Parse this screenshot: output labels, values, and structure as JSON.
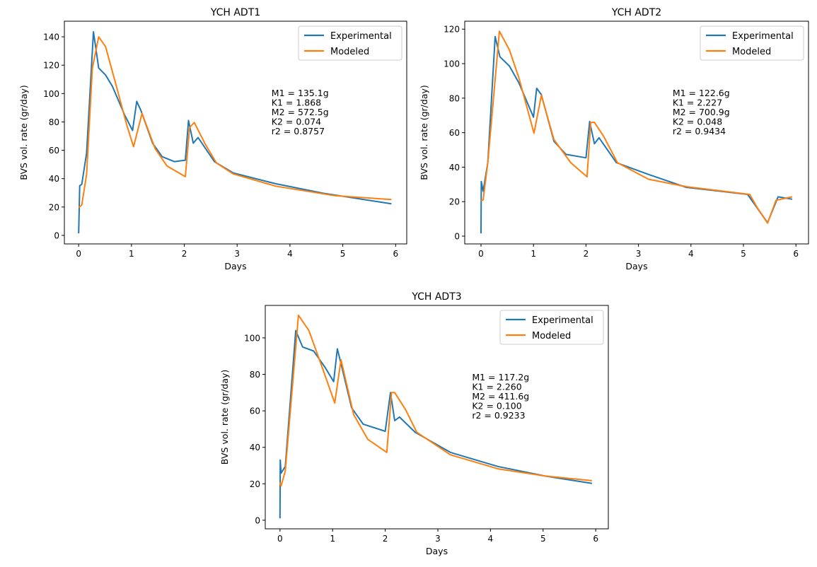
{
  "chart_data": [
    {
      "type": "line",
      "title": "YCH ADT1",
      "xlabel": "Days",
      "ylabel": "BVS vol. rate (gr/day)",
      "xlim": [
        -0.27,
        6.21
      ],
      "ylim": [
        -6,
        151
      ],
      "xticks": [
        0,
        1,
        2,
        3,
        4,
        5,
        6
      ],
      "yticks": [
        0,
        20,
        40,
        60,
        80,
        100,
        120,
        140
      ],
      "grid": false,
      "legend_position": "top-right",
      "annotation": [
        "M1 = 135.1g",
        "K1 = 1.868",
        "M2 = 572.5g",
        "K2 = 0.074",
        "r2 = 0.8757"
      ],
      "series": [
        {
          "name": "Experimental",
          "color": "#1f77b4",
          "x": [
            0,
            0.02,
            0.06,
            0.15,
            0.28,
            0.38,
            0.51,
            0.64,
            0.87,
            1.02,
            1.1,
            1.18,
            1.4,
            1.58,
            1.81,
            2.02,
            2.08,
            2.17,
            2.26,
            2.57,
            2.93,
            3.73,
            4.63,
            5.92
          ],
          "y": [
            1.5,
            35,
            36,
            58,
            143.5,
            118,
            113,
            105,
            85,
            74,
            94.5,
            88,
            65,
            55.5,
            52,
            53,
            81,
            65,
            69,
            52,
            44,
            36.4,
            29.7,
            22.3
          ]
        },
        {
          "name": "Modeled",
          "color": "#ff7f0e",
          "x": [
            0,
            0.06,
            0.15,
            0.26,
            0.38,
            0.51,
            0.73,
            0.91,
            1.04,
            1.2,
            1.45,
            1.67,
            2.02,
            2.1,
            2.19,
            2.39,
            2.61,
            2.93,
            3.73,
            4.85,
            5.92
          ],
          "y": [
            19.6,
            21.4,
            43,
            118,
            140,
            133,
            103,
            78,
            62.5,
            86,
            61,
            49,
            41.4,
            76,
            79.6,
            64.7,
            51,
            43.3,
            34.7,
            28,
            25.3
          ]
        }
      ]
    },
    {
      "type": "line",
      "title": "YCH ADT2",
      "xlabel": "Days",
      "ylabel": "BVS vol. rate (gr/day)",
      "xlim": [
        -0.31,
        6.24
      ],
      "ylim": [
        -4.5,
        124.6
      ],
      "xticks": [
        0,
        1,
        2,
        3,
        4,
        5,
        6
      ],
      "yticks": [
        0,
        20,
        40,
        60,
        80,
        100,
        120
      ],
      "grid": false,
      "legend_position": "top-right",
      "annotation": [
        "M1 = 122.6g",
        "K1 = 2.227",
        "M2 = 700.9g",
        "K2 = 0.048",
        "r2 = 0.9434"
      ],
      "series": [
        {
          "name": "Experimental",
          "color": "#1f77b4",
          "x": [
            0,
            0.005,
            0.04,
            0.13,
            0.27,
            0.36,
            0.54,
            0.72,
            1.0,
            1.06,
            1.15,
            1.39,
            1.62,
            2.0,
            2.07,
            2.16,
            2.25,
            2.58,
            3.19,
            3.91,
            5.08,
            5.46,
            5.66,
            5.93
          ],
          "y": [
            1.6,
            31.7,
            26,
            42.6,
            115.7,
            104,
            98.6,
            89,
            69,
            85.7,
            82,
            55,
            47.4,
            45.4,
            66.5,
            53.6,
            57,
            42.6,
            35.8,
            28.3,
            24.2,
            7.8,
            22.8,
            21.4
          ]
        },
        {
          "name": "Modeled",
          "color": "#ff7f0e",
          "x": [
            0,
            0.04,
            0.13,
            0.35,
            0.54,
            0.72,
            1.01,
            1.15,
            1.39,
            1.71,
            2.02,
            2.09,
            2.16,
            2.34,
            2.6,
            3.19,
            3.91,
            5.12,
            5.26,
            5.46,
            5.62,
            5.93
          ],
          "y": [
            20.5,
            21,
            42.6,
            118.8,
            108,
            92,
            59.7,
            81.6,
            56,
            42.6,
            34.4,
            65.9,
            66,
            57.7,
            42.6,
            33,
            28.7,
            24.2,
            16.7,
            7.5,
            20.8,
            22.8
          ]
        }
      ]
    },
    {
      "type": "line",
      "title": "YCH ADT3",
      "xlabel": "Days",
      "ylabel": "BVS vol. rate (gr/day)",
      "xlim": [
        -0.28,
        6.24
      ],
      "ylim": [
        -4.7,
        117.8
      ],
      "xticks": [
        0,
        1,
        2,
        3,
        4,
        5,
        6
      ],
      "yticks": [
        0,
        20,
        40,
        60,
        80,
        100
      ],
      "grid": false,
      "legend_position": "top-right",
      "annotation": [
        "M1 = 117.2g",
        "K1 = 2.260",
        "M2 = 411.6g",
        "K2 = 0.100",
        "r2 = 0.9233"
      ],
      "series": [
        {
          "name": "Experimental",
          "color": "#1f77b4",
          "x": [
            0,
            0.005,
            0.02,
            0.1,
            0.3,
            0.43,
            0.64,
            0.86,
            1.02,
            1.09,
            1.15,
            1.36,
            1.58,
            2.0,
            2.1,
            2.18,
            2.27,
            2.57,
            3.24,
            4.14,
            5.03,
            5.93
          ],
          "y": [
            1,
            33,
            25.8,
            29.5,
            104,
            95,
            92.8,
            83.7,
            76,
            94,
            87,
            61.7,
            52.7,
            48.8,
            70,
            54.6,
            56.6,
            48.2,
            37.2,
            29.5,
            24.3,
            20.2
          ]
        },
        {
          "name": "Modeled",
          "color": "#ff7f0e",
          "x": [
            0,
            0.02,
            0.1,
            0.35,
            0.55,
            0.82,
            1.04,
            1.16,
            1.4,
            1.67,
            2.03,
            2.12,
            2.18,
            2.39,
            2.6,
            3.24,
            4.14,
            5.03,
            5.93
          ],
          "y": [
            20.7,
            18.7,
            27,
            112.4,
            104,
            82.4,
            64.3,
            88,
            57.9,
            44.3,
            37.2,
            70,
            70,
            60.5,
            48.2,
            35.9,
            28.2,
            24.3,
            21.7
          ]
        }
      ]
    }
  ]
}
